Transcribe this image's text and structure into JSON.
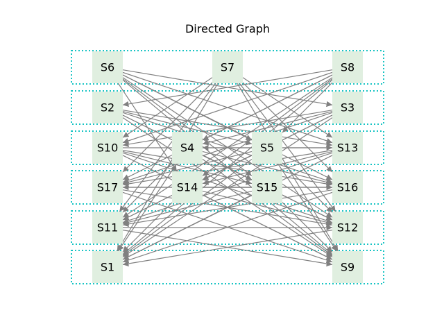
{
  "title": "Directed Graph",
  "colors": {
    "group_border": "#17c4c4",
    "node_fill": "#e0efe0",
    "edge": "#808080"
  },
  "nodes": [
    "S1",
    "S2",
    "S3",
    "S4",
    "S5",
    "S6",
    "S7",
    "S8",
    "S9",
    "S10",
    "S11",
    "S12",
    "S13",
    "S14",
    "S15",
    "S16",
    "S17"
  ],
  "groups": [
    [
      "S6",
      "S7",
      "S8"
    ],
    [
      "S2",
      "S3"
    ],
    [
      "S10",
      "S4",
      "S5",
      "S13"
    ],
    [
      "S17",
      "S14",
      "S15",
      "S16"
    ],
    [
      "S11",
      "S12"
    ],
    [
      "S1",
      "S9"
    ]
  ],
  "edges": [
    [
      "S6",
      "S13"
    ],
    [
      "S6",
      "S16"
    ],
    [
      "S6",
      "S12"
    ],
    [
      "S6",
      "S9"
    ],
    [
      "S6",
      "S5"
    ],
    [
      "S6",
      "S15"
    ],
    [
      "S6",
      "S14"
    ],
    [
      "S6",
      "S3"
    ],
    [
      "S7",
      "S10"
    ],
    [
      "S7",
      "S17"
    ],
    [
      "S7",
      "S11"
    ],
    [
      "S7",
      "S1"
    ],
    [
      "S7",
      "S12"
    ],
    [
      "S7",
      "S9"
    ],
    [
      "S7",
      "S16"
    ],
    [
      "S7",
      "S13"
    ],
    [
      "S8",
      "S2"
    ],
    [
      "S8",
      "S10"
    ],
    [
      "S8",
      "S17"
    ],
    [
      "S8",
      "S11"
    ],
    [
      "S8",
      "S1"
    ],
    [
      "S8",
      "S4"
    ],
    [
      "S8",
      "S14"
    ],
    [
      "S8",
      "S5"
    ],
    [
      "S2",
      "S13"
    ],
    [
      "S2",
      "S16"
    ],
    [
      "S2",
      "S12"
    ],
    [
      "S2",
      "S9"
    ],
    [
      "S2",
      "S15"
    ],
    [
      "S2",
      "S5"
    ],
    [
      "S3",
      "S10"
    ],
    [
      "S3",
      "S17"
    ],
    [
      "S3",
      "S11"
    ],
    [
      "S3",
      "S1"
    ],
    [
      "S3",
      "S4"
    ],
    [
      "S3",
      "S14"
    ],
    [
      "S10",
      "S13"
    ],
    [
      "S10",
      "S16"
    ],
    [
      "S10",
      "S12"
    ],
    [
      "S10",
      "S9"
    ],
    [
      "S10",
      "S15"
    ],
    [
      "S13",
      "S17"
    ],
    [
      "S13",
      "S11"
    ],
    [
      "S13",
      "S1"
    ],
    [
      "S13",
      "S14"
    ],
    [
      "S13",
      "S4"
    ],
    [
      "S4",
      "S16"
    ],
    [
      "S4",
      "S12"
    ],
    [
      "S4",
      "S9"
    ],
    [
      "S4",
      "S15"
    ],
    [
      "S4",
      "S1"
    ],
    [
      "S4",
      "S11"
    ],
    [
      "S5",
      "S17"
    ],
    [
      "S5",
      "S11"
    ],
    [
      "S5",
      "S1"
    ],
    [
      "S5",
      "S14"
    ],
    [
      "S5",
      "S12"
    ],
    [
      "S5",
      "S9"
    ],
    [
      "S17",
      "S16"
    ],
    [
      "S17",
      "S12"
    ],
    [
      "S17",
      "S9"
    ],
    [
      "S16",
      "S11"
    ],
    [
      "S16",
      "S1"
    ],
    [
      "S14",
      "S12"
    ],
    [
      "S14",
      "S9"
    ],
    [
      "S14",
      "S16"
    ],
    [
      "S14",
      "S1"
    ],
    [
      "S15",
      "S11"
    ],
    [
      "S15",
      "S1"
    ],
    [
      "S15",
      "S9"
    ],
    [
      "S15",
      "S17"
    ],
    [
      "S15",
      "S12"
    ],
    [
      "S11",
      "S9"
    ],
    [
      "S11",
      "S12"
    ],
    [
      "S12",
      "S1"
    ]
  ]
}
